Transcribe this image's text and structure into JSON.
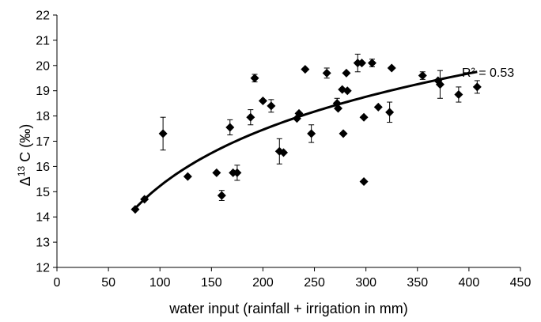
{
  "chart_data": {
    "type": "scatter",
    "title": "",
    "xlabel": "water input (rainfall + irrigation in mm)",
    "ylabel_parts": {
      "delta": "Δ",
      "sup": "13",
      "rest": " C (‰)"
    },
    "xlim": [
      0,
      450
    ],
    "ylim": [
      12,
      22
    ],
    "xticks": [
      "0",
      "50",
      "100",
      "150",
      "200",
      "250",
      "300",
      "350",
      "400",
      "450"
    ],
    "yticks": [
      "12",
      "13",
      "14",
      "15",
      "16",
      "17",
      "18",
      "19",
      "20",
      "21",
      "22"
    ],
    "grid": false,
    "legend": "none",
    "marker": "diamond",
    "color": "#000000",
    "annotation": "R² = 0.53",
    "trendline": {
      "type": "logarithmic",
      "x_range": [
        75,
        408
      ],
      "y_range": [
        14.3,
        19.75
      ]
    },
    "points": [
      {
        "x": 76,
        "y": 14.3
      },
      {
        "x": 85,
        "y": 14.7
      },
      {
        "x": 103,
        "y": 17.3,
        "err": 0.65
      },
      {
        "x": 127,
        "y": 15.6
      },
      {
        "x": 155,
        "y": 15.75
      },
      {
        "x": 160,
        "y": 14.85,
        "err": 0.2
      },
      {
        "x": 168,
        "y": 17.55,
        "err": 0.3
      },
      {
        "x": 171,
        "y": 15.75
      },
      {
        "x": 175,
        "y": 15.75,
        "err": 0.3
      },
      {
        "x": 188,
        "y": 17.95,
        "err": 0.3
      },
      {
        "x": 192,
        "y": 19.5,
        "err": 0.15
      },
      {
        "x": 200,
        "y": 18.6
      },
      {
        "x": 208,
        "y": 18.4,
        "err": 0.25
      },
      {
        "x": 216,
        "y": 16.6,
        "err": 0.5
      },
      {
        "x": 220,
        "y": 16.55
      },
      {
        "x": 233,
        "y": 17.9
      },
      {
        "x": 235,
        "y": 18.1
      },
      {
        "x": 241,
        "y": 19.85
      },
      {
        "x": 247,
        "y": 17.3,
        "err": 0.35
      },
      {
        "x": 262,
        "y": 19.7,
        "err": 0.2
      },
      {
        "x": 272,
        "y": 18.5,
        "err": 0.2
      },
      {
        "x": 273,
        "y": 18.3
      },
      {
        "x": 277,
        "y": 19.05
      },
      {
        "x": 278,
        "y": 17.3
      },
      {
        "x": 281,
        "y": 19.7
      },
      {
        "x": 282,
        "y": 19.0
      },
      {
        "x": 292,
        "y": 20.1,
        "err": 0.35
      },
      {
        "x": 296,
        "y": 20.1
      },
      {
        "x": 298,
        "y": 17.95
      },
      {
        "x": 298,
        "y": 15.4
      },
      {
        "x": 306,
        "y": 20.1,
        "err": 0.15
      },
      {
        "x": 312,
        "y": 18.35
      },
      {
        "x": 323,
        "y": 18.15,
        "err": 0.4
      },
      {
        "x": 325,
        "y": 19.9
      },
      {
        "x": 355,
        "y": 19.6,
        "err": 0.15
      },
      {
        "x": 370,
        "y": 19.4
      },
      {
        "x": 372,
        "y": 19.25,
        "err": 0.55
      },
      {
        "x": 390,
        "y": 18.85,
        "err": 0.3
      },
      {
        "x": 408,
        "y": 19.15,
        "err": 0.25
      }
    ]
  }
}
